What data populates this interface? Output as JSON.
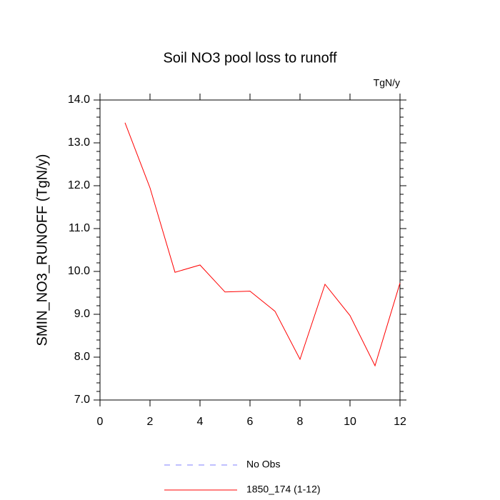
{
  "chart_data": {
    "type": "line",
    "title": "Soil NO3 pool loss to runoff",
    "units": "TgN/y",
    "y_label": "SMIN_NO3_RUNOFF  (TgN/y)",
    "x": [
      1,
      2,
      3,
      4,
      5,
      6,
      7,
      8,
      9,
      10,
      11,
      12
    ],
    "series": [
      {
        "name": "No Obs",
        "color": "#8080ff",
        "dash": "dashed",
        "values": [
          null,
          null,
          null,
          null,
          null,
          null,
          null,
          null,
          null,
          null,
          null,
          null
        ]
      },
      {
        "name": "1850_174 (1-12)",
        "color": "#ff0000",
        "dash": "solid",
        "values": [
          13.47,
          11.95,
          9.98,
          10.15,
          9.52,
          9.54,
          9.07,
          7.95,
          9.7,
          8.97,
          7.8,
          9.73
        ]
      }
    ],
    "xlim": [
      0,
      12
    ],
    "xticks": [
      0,
      2,
      4,
      6,
      8,
      10,
      12
    ],
    "ylim": [
      7,
      14
    ],
    "yticks": [
      {
        "value": 7,
        "label": "7.0"
      },
      {
        "value": 8,
        "label": "8.0"
      },
      {
        "value": 9,
        "label": "9.0"
      },
      {
        "value": 10,
        "label": "10.0"
      },
      {
        "value": 11,
        "label": "11.0"
      },
      {
        "value": 12,
        "label": "12.0"
      },
      {
        "value": 13,
        "label": "13.0"
      },
      {
        "value": 14,
        "label": "14.0"
      }
    ],
    "grid": false
  }
}
